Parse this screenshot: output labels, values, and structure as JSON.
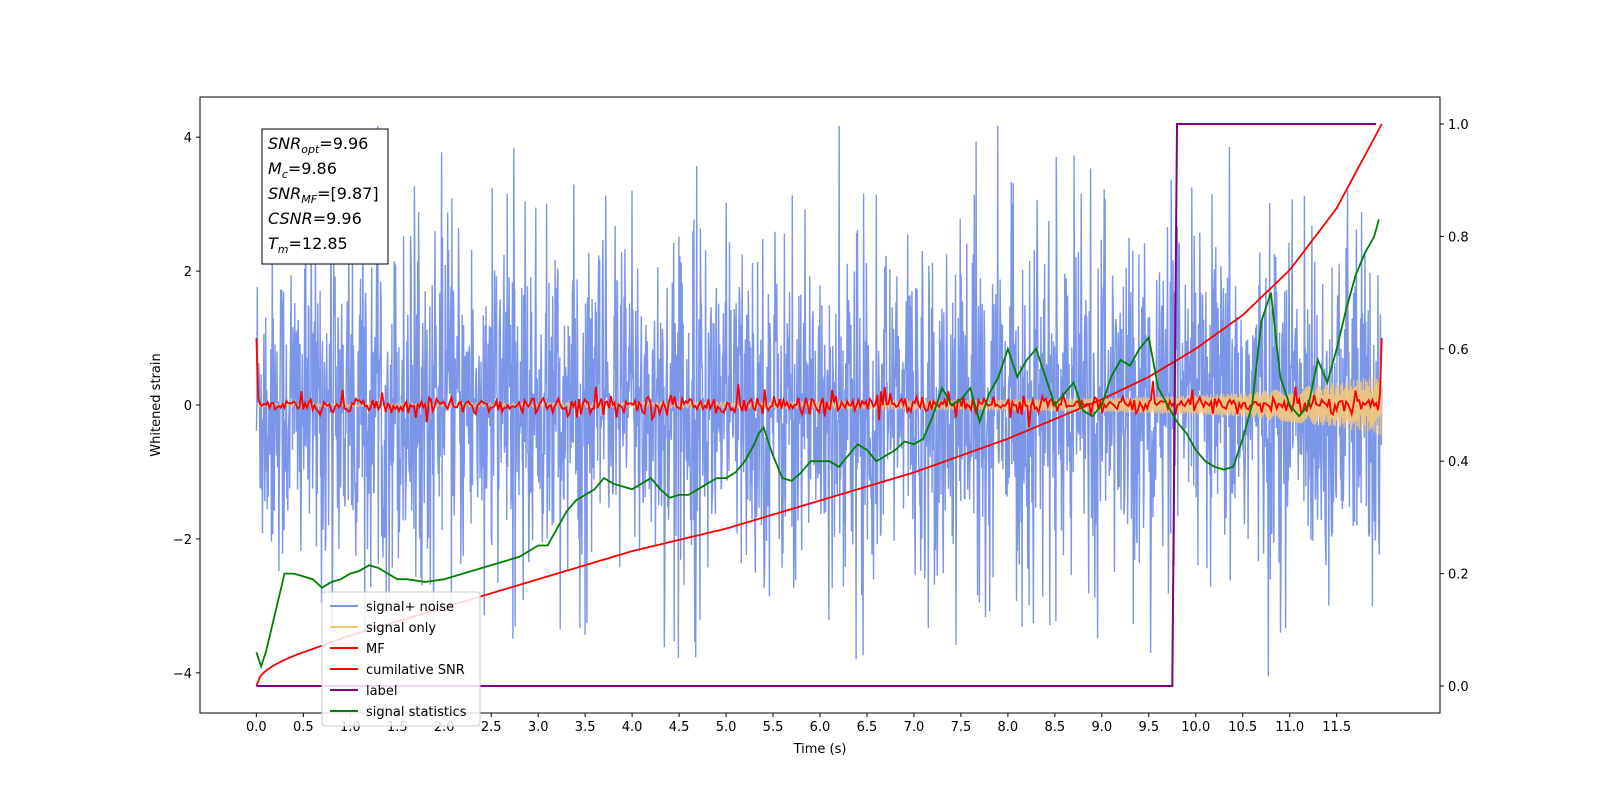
{
  "chart_data": {
    "type": "line",
    "title": "",
    "xlabel": "Time (s)",
    "ylabel": "Whitened strain",
    "y2label": "",
    "xlim": [
      -0.6,
      12.6
    ],
    "ylim": [
      -4.6,
      4.6
    ],
    "y2lim": [
      -0.048,
      1.048
    ],
    "x_ticks": [
      0.0,
      0.5,
      1.0,
      1.5,
      2.0,
      2.5,
      3.0,
      3.5,
      4.0,
      4.5,
      5.0,
      5.5,
      6.0,
      6.5,
      7.0,
      7.5,
      8.0,
      8.5,
      9.0,
      9.5,
      10.0,
      10.5,
      11.0,
      11.5
    ],
    "x_tick_labels": [
      "0.0",
      "0.5",
      "1.0",
      "1.5",
      "2.0",
      "2.5",
      "3.0",
      "3.5",
      "4.0",
      "4.5",
      "5.0",
      "5.5",
      "6.0",
      "6.5",
      "7.0",
      "7.5",
      "8.0",
      "8.5",
      "9.0",
      "9.5",
      "10.0",
      "10.5",
      "11.0",
      "11.5"
    ],
    "y_ticks": [
      -4,
      -2,
      0,
      2,
      4
    ],
    "y_tick_labels": [
      "−4",
      "−2",
      "0",
      "2",
      "4"
    ],
    "y2_ticks": [
      0.0,
      0.2,
      0.4,
      0.6,
      0.8,
      1.0
    ],
    "y2_tick_labels": [
      "0.0",
      "0.2",
      "0.4",
      "0.6",
      "0.8",
      "1.0"
    ],
    "grid": false,
    "legend_position": "lower-left",
    "series": [
      {
        "name": "signal+ noise",
        "axis": "left",
        "color": "#7b96e8",
        "style": "noisy band",
        "x_range": [
          0.0,
          11.98
        ],
        "band_min": -4.05,
        "band_max": 4.17,
        "typical_amplitude": 2.0
      },
      {
        "name": "signal only",
        "axis": "left",
        "color": "#f5c87a",
        "style": "chirp",
        "x_range": [
          0.0,
          11.98
        ],
        "envelope": [
          [
            0.0,
            0.02
          ],
          [
            3.0,
            0.03
          ],
          [
            6.0,
            0.05
          ],
          [
            8.0,
            0.08
          ],
          [
            9.5,
            0.12
          ],
          [
            10.5,
            0.18
          ],
          [
            11.5,
            0.33
          ],
          [
            11.98,
            0.45
          ]
        ]
      },
      {
        "name": "MF",
        "axis": "left",
        "color": "#ff0000",
        "style": "small oscillation near zero",
        "x_range": [
          0.0,
          11.98
        ],
        "start_value": 1.0,
        "end_value": 1.0,
        "typical_amplitude": 0.1
      },
      {
        "name": "cumilative SNR",
        "axis": "right",
        "color": "#ff0000",
        "x": [
          0.0,
          0.5,
          1.0,
          2.0,
          3.0,
          4.0,
          5.0,
          6.0,
          7.0,
          8.0,
          9.0,
          9.5,
          10.0,
          10.5,
          11.0,
          11.5,
          11.98
        ],
        "y": [
          0.0,
          0.06,
          0.09,
          0.14,
          0.19,
          0.24,
          0.28,
          0.33,
          0.38,
          0.44,
          0.51,
          0.55,
          0.6,
          0.66,
          0.74,
          0.85,
          1.0
        ]
      },
      {
        "name": "label",
        "axis": "right",
        "color": "#800080",
        "x": [
          0.0,
          9.75,
          9.8,
          11.92
        ],
        "y": [
          0.0,
          0.0,
          1.0,
          1.0
        ]
      },
      {
        "name": "signal statistics",
        "axis": "right",
        "color": "#008000",
        "x": [
          0.0,
          0.05,
          0.1,
          0.2,
          0.3,
          0.4,
          0.5,
          0.6,
          0.7,
          0.8,
          0.9,
          1.0,
          1.1,
          1.2,
          1.3,
          1.4,
          1.5,
          1.6,
          1.8,
          2.0,
          2.2,
          2.4,
          2.6,
          2.8,
          3.0,
          3.1,
          3.2,
          3.3,
          3.4,
          3.5,
          3.6,
          3.7,
          3.8,
          3.9,
          4.0,
          4.1,
          4.2,
          4.3,
          4.4,
          4.5,
          4.6,
          4.7,
          4.8,
          4.9,
          5.0,
          5.1,
          5.2,
          5.3,
          5.35,
          5.4,
          5.5,
          5.6,
          5.7,
          5.8,
          5.9,
          6.0,
          6.1,
          6.2,
          6.3,
          6.4,
          6.5,
          6.6,
          6.7,
          6.8,
          6.9,
          7.0,
          7.1,
          7.2,
          7.3,
          7.4,
          7.5,
          7.6,
          7.7,
          7.8,
          7.9,
          8.0,
          8.1,
          8.2,
          8.3,
          8.4,
          8.5,
          8.6,
          8.7,
          8.8,
          8.9,
          9.0,
          9.1,
          9.2,
          9.3,
          9.4,
          9.5,
          9.6,
          9.7,
          9.8,
          9.9,
          10.0,
          10.1,
          10.2,
          10.3,
          10.4,
          10.5,
          10.6,
          10.7,
          10.8,
          10.9,
          11.0,
          11.1,
          11.2,
          11.3,
          11.4,
          11.5,
          11.6,
          11.7,
          11.8,
          11.9,
          11.95
        ],
        "y": [
          0.06,
          0.035,
          0.06,
          0.13,
          0.2,
          0.2,
          0.195,
          0.19,
          0.175,
          0.185,
          0.19,
          0.2,
          0.205,
          0.215,
          0.21,
          0.2,
          0.19,
          0.19,
          0.185,
          0.19,
          0.2,
          0.21,
          0.22,
          0.23,
          0.25,
          0.25,
          0.28,
          0.31,
          0.33,
          0.34,
          0.35,
          0.37,
          0.36,
          0.355,
          0.35,
          0.36,
          0.37,
          0.35,
          0.335,
          0.34,
          0.34,
          0.35,
          0.36,
          0.37,
          0.37,
          0.38,
          0.4,
          0.43,
          0.45,
          0.46,
          0.41,
          0.37,
          0.365,
          0.38,
          0.4,
          0.4,
          0.4,
          0.39,
          0.41,
          0.43,
          0.42,
          0.4,
          0.41,
          0.42,
          0.435,
          0.43,
          0.44,
          0.48,
          0.53,
          0.5,
          0.51,
          0.53,
          0.47,
          0.52,
          0.55,
          0.6,
          0.55,
          0.58,
          0.6,
          0.55,
          0.5,
          0.52,
          0.54,
          0.49,
          0.48,
          0.5,
          0.55,
          0.58,
          0.57,
          0.6,
          0.62,
          0.53,
          0.5,
          0.47,
          0.45,
          0.42,
          0.4,
          0.39,
          0.385,
          0.39,
          0.44,
          0.5,
          0.65,
          0.7,
          0.55,
          0.5,
          0.48,
          0.5,
          0.58,
          0.54,
          0.6,
          0.67,
          0.73,
          0.77,
          0.8,
          0.83
        ]
      }
    ],
    "annotation": {
      "lines": [
        {
          "base": "SNR",
          "sub": "opt",
          "value": "=9.96"
        },
        {
          "base": "M",
          "sub": "c",
          "value": "=9.86"
        },
        {
          "base": "SNR",
          "sub": "MF",
          "value": "=[9.87]"
        },
        {
          "base": "CSNR",
          "sub": "",
          "value": "=9.96"
        },
        {
          "base": "T",
          "sub": "m",
          "value": "=12.85"
        }
      ]
    }
  }
}
